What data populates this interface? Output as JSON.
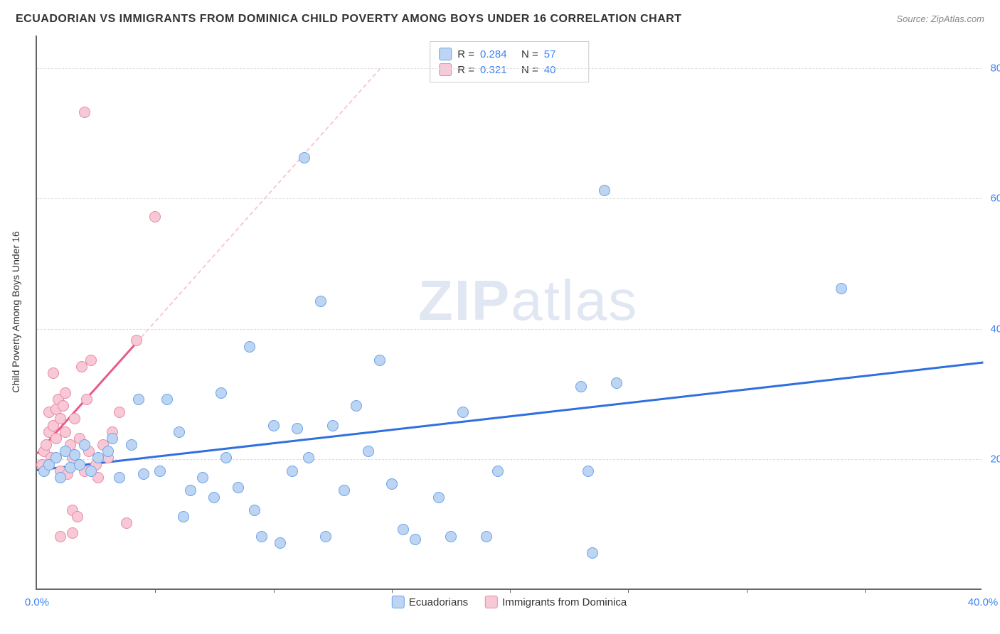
{
  "title": "ECUADORIAN VS IMMIGRANTS FROM DOMINICA CHILD POVERTY AMONG BOYS UNDER 16 CORRELATION CHART",
  "source": "Source: ZipAtlas.com",
  "y_axis_label": "Child Poverty Among Boys Under 16",
  "watermark_a": "ZIP",
  "watermark_b": "atlas",
  "chart": {
    "type": "scatter",
    "xlim": [
      0,
      40
    ],
    "ylim": [
      0,
      85
    ],
    "y_ticks": [
      20,
      40,
      60,
      80
    ],
    "y_tick_labels": [
      "20.0%",
      "40.0%",
      "60.0%",
      "80.0%"
    ],
    "x_ticks": [
      0,
      40
    ],
    "x_tick_labels": [
      "0.0%",
      "40.0%"
    ],
    "x_minor_ticks": [
      5,
      10,
      15,
      20,
      25,
      30,
      35
    ],
    "grid_color": "#dddddd",
    "background_color": "#ffffff",
    "axis_color": "#666666"
  },
  "series": {
    "ecuadorians": {
      "label": "Ecuadorians",
      "R": "0.284",
      "N": "57",
      "marker_fill": "#bdd5f2",
      "marker_stroke": "#6aa3e8",
      "marker_size": 16,
      "trend_color": "#2f6fe0",
      "trend_solid": {
        "x1": 0,
        "y1": 18.5,
        "x2": 40,
        "y2": 35
      },
      "points": [
        [
          0.3,
          18
        ],
        [
          0.5,
          19
        ],
        [
          0.8,
          20
        ],
        [
          1.0,
          17
        ],
        [
          1.2,
          21
        ],
        [
          1.4,
          18.5
        ],
        [
          1.6,
          20.5
        ],
        [
          1.8,
          19
        ],
        [
          2.0,
          22
        ],
        [
          2.3,
          18
        ],
        [
          2.6,
          20
        ],
        [
          3.0,
          21
        ],
        [
          3.2,
          23
        ],
        [
          3.5,
          17
        ],
        [
          4.0,
          22
        ],
        [
          4.3,
          29
        ],
        [
          4.5,
          17.5
        ],
        [
          5.2,
          18
        ],
        [
          5.5,
          29
        ],
        [
          6,
          24
        ],
        [
          6.2,
          11
        ],
        [
          6.5,
          15
        ],
        [
          7,
          17
        ],
        [
          7.5,
          14
        ],
        [
          7.8,
          30
        ],
        [
          8,
          20
        ],
        [
          8.5,
          15.5
        ],
        [
          9,
          37
        ],
        [
          9.2,
          12
        ],
        [
          9.5,
          8
        ],
        [
          10,
          25
        ],
        [
          10.3,
          7
        ],
        [
          10.8,
          18
        ],
        [
          11,
          24.5
        ],
        [
          11.5,
          20
        ],
        [
          12,
          44
        ],
        [
          12.2,
          8
        ],
        [
          12.5,
          25
        ],
        [
          13,
          15
        ],
        [
          13.5,
          28
        ],
        [
          14,
          21
        ],
        [
          14.5,
          35
        ],
        [
          15,
          16
        ],
        [
          15.5,
          9
        ],
        [
          16,
          7.5
        ],
        [
          17,
          14
        ],
        [
          17.5,
          8
        ],
        [
          18,
          27
        ],
        [
          19,
          8
        ],
        [
          19.5,
          18
        ],
        [
          23,
          31
        ],
        [
          23.3,
          18
        ],
        [
          24,
          61
        ],
        [
          24.5,
          31.5
        ],
        [
          23.5,
          5.5
        ],
        [
          34,
          46
        ],
        [
          11.3,
          66
        ]
      ]
    },
    "dominica": {
      "label": "Immigrants from Dominica",
      "R": "0.321",
      "N": "40",
      "marker_fill": "#f7c8d5",
      "marker_stroke": "#e88aa5",
      "marker_size": 16,
      "trend_color": "#e85a8a",
      "trend_solid": {
        "x1": 0,
        "y1": 21,
        "x2": 4.2,
        "y2": 38
      },
      "trend_dash": {
        "x1": 4.2,
        "y1": 38,
        "x2": 14.5,
        "y2": 80
      },
      "points": [
        [
          0.2,
          19
        ],
        [
          0.3,
          21
        ],
        [
          0.4,
          22
        ],
        [
          0.5,
          24
        ],
        [
          0.5,
          27
        ],
        [
          0.6,
          20
        ],
        [
          0.7,
          25
        ],
        [
          0.8,
          27.5
        ],
        [
          0.8,
          23
        ],
        [
          0.9,
          29
        ],
        [
          1.0,
          18
        ],
        [
          1.0,
          26
        ],
        [
          1.1,
          28
        ],
        [
          1.2,
          24
        ],
        [
          1.2,
          30
        ],
        [
          1.3,
          17.5
        ],
        [
          1.4,
          22
        ],
        [
          1.5,
          20
        ],
        [
          1.5,
          12
        ],
        [
          1.6,
          26
        ],
        [
          1.7,
          11
        ],
        [
          1.8,
          23
        ],
        [
          1.9,
          34
        ],
        [
          2.0,
          18
        ],
        [
          2.1,
          29
        ],
        [
          2.2,
          21
        ],
        [
          2.3,
          35
        ],
        [
          2.5,
          19
        ],
        [
          2.6,
          17
        ],
        [
          2.8,
          22
        ],
        [
          3.0,
          20
        ],
        [
          3.2,
          24
        ],
        [
          3.5,
          27
        ],
        [
          3.8,
          10
        ],
        [
          1.0,
          8
        ],
        [
          1.5,
          8.5
        ],
        [
          4.2,
          38
        ],
        [
          5.0,
          57
        ],
        [
          2.0,
          73
        ],
        [
          0.7,
          33
        ]
      ]
    }
  },
  "stats_legend": {
    "r_label": "R =",
    "n_label": "N ="
  }
}
